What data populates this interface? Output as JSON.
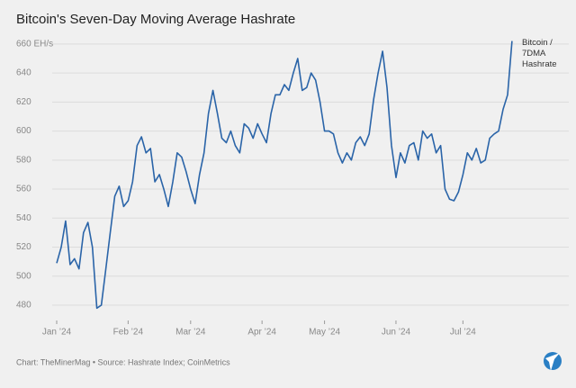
{
  "chart_data": {
    "type": "line",
    "title": "Bitcoin's Seven-Day Moving Average Hashrate",
    "footer": "Chart: TheMinerMag • Source: Hashrate Index; CoinMetrics",
    "categories": [
      "Jan ’24",
      null,
      null,
      null,
      null,
      null,
      null,
      null,
      null,
      null,
      null,
      null,
      null,
      null,
      null,
      null,
      "Feb ’24",
      null,
      null,
      null,
      null,
      null,
      null,
      null,
      null,
      null,
      null,
      null,
      null,
      null,
      "Mar ’24",
      null,
      null,
      null,
      null,
      null,
      null,
      null,
      null,
      null,
      null,
      null,
      null,
      null,
      null,
      null,
      "Apr ’24",
      null,
      null,
      null,
      null,
      null,
      null,
      null,
      null,
      null,
      null,
      null,
      null,
      null,
      "May ’24",
      null,
      null,
      null,
      null,
      null,
      null,
      null,
      null,
      null,
      null,
      null,
      null,
      null,
      null,
      null,
      "Jun ’24",
      null,
      null,
      null,
      null,
      null,
      null,
      null,
      null,
      null,
      null,
      null,
      null,
      null,
      null,
      "Jul ’24",
      null,
      null,
      null,
      null,
      null,
      null,
      null,
      null,
      null,
      null,
      null
    ],
    "series": [
      {
        "name": "Bitcoin / 7DMA Hashrate",
        "color": "#2a64a8",
        "values": [
          509,
          520,
          538,
          508,
          512,
          505,
          530,
          537,
          520,
          478,
          480,
          505,
          530,
          555,
          562,
          548,
          552,
          565,
          590,
          596,
          585,
          588,
          565,
          570,
          560,
          548,
          565,
          585,
          582,
          572,
          560,
          550,
          570,
          585,
          612,
          628,
          612,
          595,
          592,
          600,
          590,
          585,
          605,
          602,
          595,
          605,
          598,
          592,
          612,
          625,
          625,
          632,
          628,
          640,
          650,
          628,
          630,
          640,
          635,
          620,
          600,
          600,
          598,
          585,
          578,
          585,
          580,
          592,
          596,
          590,
          598,
          622,
          640,
          655,
          630,
          590,
          568,
          585,
          578,
          590,
          592,
          580,
          600,
          595,
          598,
          585,
          590,
          560,
          553,
          552,
          558,
          570,
          585,
          580,
          588,
          578,
          580,
          595,
          598,
          600,
          615,
          625,
          662
        ]
      }
    ],
    "ylim": [
      467,
      663
    ],
    "yticks": [
      480,
      500,
      520,
      540,
      560,
      580,
      600,
      620,
      640,
      {
        "value": 660,
        "label": "660 EH/s"
      }
    ],
    "grid": true
  }
}
